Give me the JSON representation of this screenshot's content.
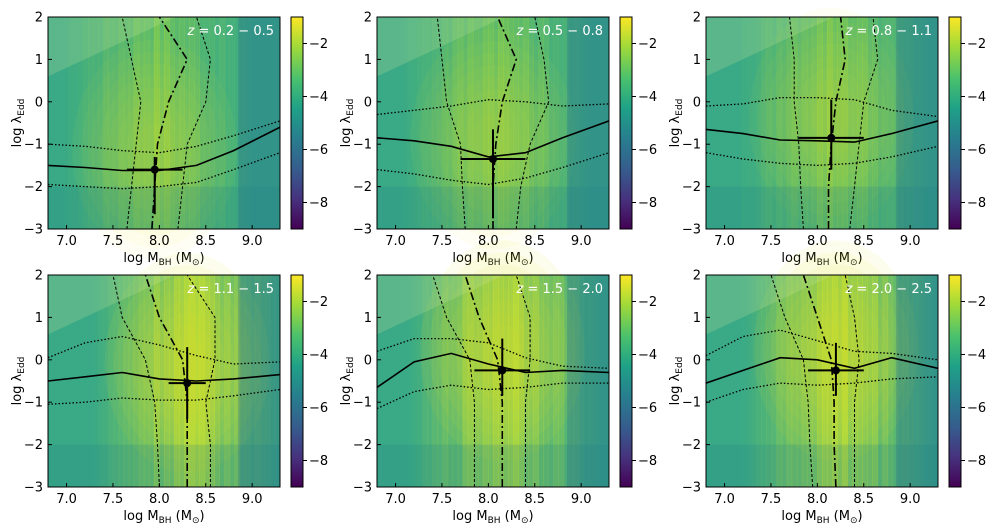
{
  "figure": {
    "xlabel": "log M_BH (M_⊙)",
    "ylabel": "log λ_Edd"
  },
  "chart_data": [
    {
      "type": "heatmap",
      "title": "z = 0.2 − 0.5",
      "xlim": [
        6.8,
        9.3
      ],
      "ylim": [
        -3,
        2
      ],
      "xticks": [
        "7.0",
        "7.5",
        "8.0",
        "8.5",
        "9.0"
      ],
      "yticks": [
        "−3",
        "−2",
        "−1",
        "0",
        "1",
        "2"
      ],
      "colorbar": {
        "range": [
          -9,
          -1
        ],
        "ticks": [
          "−2",
          "−4",
          "−6",
          "−8"
        ]
      },
      "point": {
        "x": 7.95,
        "y": -1.6,
        "xerr": 0.3,
        "yerr": [
          1.05,
          0.3
        ]
      },
      "median_lambda": {
        "x": [
          6.8,
          7.2,
          7.6,
          8.0,
          8.4,
          8.8,
          9.3
        ],
        "y": [
          -1.5,
          -1.55,
          -1.62,
          -1.62,
          -1.5,
          -1.15,
          -0.6
        ]
      },
      "lambda_upper": {
        "x": [
          6.8,
          7.2,
          7.6,
          8.0,
          8.4,
          8.8,
          9.3
        ],
        "y": [
          -1.0,
          -1.05,
          -1.15,
          -1.2,
          -1.05,
          -0.8,
          -0.45
        ]
      },
      "lambda_lower": {
        "x": [
          6.8,
          7.2,
          7.6,
          8.0,
          8.4,
          8.8,
          9.3
        ],
        "y": [
          -1.95,
          -2.0,
          -2.05,
          -2.0,
          -1.9,
          -1.6,
          -1.2
        ]
      },
      "median_mbh": {
        "y": [
          -3,
          -2,
          -1,
          0,
          1,
          2
        ],
        "x": [
          7.92,
          7.95,
          7.98,
          8.1,
          8.3,
          8.0
        ]
      },
      "mbh_lower": {
        "y": [
          -3,
          -2,
          -1,
          0,
          1,
          2
        ],
        "x": [
          7.65,
          7.7,
          7.75,
          7.8,
          7.7,
          7.6
        ]
      },
      "mbh_upper": {
        "y": [
          -3,
          -2,
          -1,
          0,
          1,
          2
        ],
        "x": [
          8.2,
          8.25,
          8.3,
          8.5,
          8.55,
          8.4
        ]
      }
    },
    {
      "type": "heatmap",
      "title": "z = 0.5 − 0.8",
      "xlim": [
        6.8,
        9.3
      ],
      "ylim": [
        -3,
        2
      ],
      "xticks": [
        "7.0",
        "7.5",
        "8.0",
        "8.5",
        "9.0"
      ],
      "yticks": [
        "−3",
        "−2",
        "−1",
        "0",
        "1",
        "2"
      ],
      "colorbar": {
        "range": [
          -9,
          -1
        ],
        "ticks": [
          "−2",
          "−4",
          "−6",
          "−8"
        ]
      },
      "point": {
        "x": 8.05,
        "y": -1.35,
        "xerr": 0.35,
        "yerr": [
          1.4,
          0.7
        ]
      },
      "median_lambda": {
        "x": [
          6.8,
          7.2,
          7.6,
          8.0,
          8.4,
          8.8,
          9.3
        ],
        "y": [
          -0.85,
          -0.92,
          -1.05,
          -1.3,
          -1.2,
          -0.85,
          -0.45
        ]
      },
      "lambda_upper": {
        "x": [
          6.8,
          7.2,
          7.6,
          8.0,
          8.4,
          8.8,
          9.3
        ],
        "y": [
          -0.3,
          -0.2,
          -0.1,
          0.05,
          0.0,
          -0.1,
          -0.05
        ]
      },
      "lambda_lower": {
        "x": [
          6.8,
          7.2,
          7.6,
          8.0,
          8.4,
          8.8,
          9.3
        ],
        "y": [
          -1.6,
          -1.7,
          -1.85,
          -1.95,
          -1.8,
          -1.55,
          -1.2
        ]
      },
      "median_mbh": {
        "y": [
          -3,
          -2,
          -1,
          0,
          1,
          2
        ],
        "x": [
          8.05,
          8.05,
          8.08,
          8.15,
          8.3,
          8.1
        ]
      },
      "mbh_lower": {
        "y": [
          -3,
          -2,
          -1,
          0,
          1,
          2
        ],
        "x": [
          7.75,
          7.72,
          7.7,
          7.55,
          7.5,
          7.45
        ]
      },
      "mbh_upper": {
        "y": [
          -3,
          -2,
          -1,
          0,
          1,
          2
        ],
        "x": [
          8.3,
          8.35,
          8.45,
          8.65,
          8.6,
          8.5
        ]
      }
    },
    {
      "type": "heatmap",
      "title": "z = 0.8 − 1.1",
      "xlim": [
        6.8,
        9.3
      ],
      "ylim": [
        -3,
        2
      ],
      "xticks": [
        "7.0",
        "7.5",
        "8.0",
        "8.5",
        "9.0"
      ],
      "yticks": [
        "−3",
        "−2",
        "−1",
        "0",
        "1",
        "2"
      ],
      "colorbar": {
        "range": [
          -9,
          -1
        ],
        "ticks": [
          "−2",
          "−4",
          "−6",
          "−8"
        ]
      },
      "point": {
        "x": 8.15,
        "y": -0.85,
        "xerr": 0.35,
        "yerr": [
          0.75,
          0.9
        ]
      },
      "median_lambda": {
        "x": [
          6.8,
          7.2,
          7.6,
          8.0,
          8.4,
          8.8,
          9.3
        ],
        "y": [
          -0.65,
          -0.75,
          -0.9,
          -0.92,
          -0.95,
          -0.75,
          -0.45
        ]
      },
      "lambda_upper": {
        "x": [
          6.8,
          7.2,
          7.6,
          8.0,
          8.4,
          8.8,
          9.3
        ],
        "y": [
          -0.1,
          -0.05,
          0.1,
          0.1,
          0.05,
          -0.2,
          -0.35
        ]
      },
      "lambda_lower": {
        "x": [
          6.8,
          7.2,
          7.6,
          8.0,
          8.4,
          8.8,
          9.3
        ],
        "y": [
          -1.2,
          -1.35,
          -1.45,
          -1.5,
          -1.45,
          -1.3,
          -1.05
        ]
      },
      "median_mbh": {
        "y": [
          -3,
          -2,
          -1,
          0,
          1,
          2
        ],
        "x": [
          8.12,
          8.12,
          8.15,
          8.2,
          8.3,
          8.25
        ]
      },
      "mbh_lower": {
        "y": [
          -3,
          -2,
          -1,
          0,
          1,
          2
        ],
        "x": [
          7.85,
          7.82,
          7.8,
          7.75,
          7.75,
          7.7
        ]
      },
      "mbh_upper": {
        "y": [
          -3,
          -2,
          -1,
          0,
          1,
          2
        ],
        "x": [
          8.35,
          8.4,
          8.45,
          8.5,
          8.65,
          8.6
        ]
      }
    },
    {
      "type": "heatmap",
      "title": "z = 1.1 − 1.5",
      "xlim": [
        6.8,
        9.3
      ],
      "ylim": [
        -3,
        2
      ],
      "xticks": [
        "7.0",
        "7.5",
        "8.0",
        "8.5",
        "9.0"
      ],
      "yticks": [
        "−3",
        "−2",
        "−1",
        "0",
        "1",
        "2"
      ],
      "colorbar": {
        "range": [
          -9,
          -1
        ],
        "ticks": [
          "−2",
          "−4",
          "−6",
          "−8"
        ]
      },
      "point": {
        "x": 8.3,
        "y": -0.55,
        "xerr": 0.2,
        "yerr": [
          0.85,
          0.85
        ]
      },
      "median_lambda": {
        "x": [
          6.8,
          7.2,
          7.6,
          8.0,
          8.4,
          8.8,
          9.3
        ],
        "y": [
          -0.5,
          -0.4,
          -0.3,
          -0.45,
          -0.5,
          -0.45,
          -0.35
        ]
      },
      "lambda_upper": {
        "x": [
          6.8,
          7.2,
          7.6,
          8.0,
          8.4,
          8.8,
          9.3
        ],
        "y": [
          0.05,
          0.4,
          0.55,
          0.35,
          0.1,
          -0.1,
          -0.05
        ]
      },
      "lambda_lower": {
        "x": [
          6.8,
          7.2,
          7.6,
          8.0,
          8.4,
          8.8,
          9.3
        ],
        "y": [
          -1.05,
          -1.0,
          -0.9,
          -0.95,
          -0.95,
          -0.85,
          -0.7
        ]
      },
      "median_mbh": {
        "y": [
          -3,
          -2,
          -1,
          0,
          1,
          2
        ],
        "x": [
          8.3,
          8.3,
          8.3,
          8.25,
          8.0,
          7.85
        ]
      },
      "mbh_lower": {
        "y": [
          -3,
          -2,
          -1,
          0,
          1,
          2
        ],
        "x": [
          8.0,
          7.98,
          7.95,
          7.85,
          7.6,
          7.5
        ]
      },
      "mbh_upper": {
        "y": [
          -3,
          -2,
          -1,
          0,
          1,
          2
        ],
        "x": [
          8.55,
          8.55,
          8.5,
          8.6,
          8.6,
          8.3
        ]
      }
    },
    {
      "type": "heatmap",
      "title": "z = 1.5 − 2.0",
      "xlim": [
        6.8,
        9.3
      ],
      "ylim": [
        -3,
        2
      ],
      "xticks": [
        "7.0",
        "7.5",
        "8.0",
        "8.5",
        "9.0"
      ],
      "yticks": [
        "−3",
        "−2",
        "−1",
        "0",
        "1",
        "2"
      ],
      "colorbar": {
        "range": [
          -9,
          -1
        ],
        "ticks": [
          "−2",
          "−4",
          "−6",
          "−8"
        ]
      },
      "point": {
        "x": 8.15,
        "y": -0.25,
        "xerr": 0.3,
        "yerr": [
          0.6,
          0.75
        ]
      },
      "median_lambda": {
        "x": [
          6.8,
          7.2,
          7.6,
          8.0,
          8.4,
          8.8,
          9.3
        ],
        "y": [
          -0.65,
          -0.05,
          0.15,
          -0.1,
          -0.3,
          -0.25,
          -0.3
        ]
      },
      "lambda_upper": {
        "x": [
          6.8,
          7.2,
          7.6,
          8.0,
          8.4,
          8.8,
          9.3
        ],
        "y": [
          0.2,
          0.5,
          0.5,
          0.4,
          0.05,
          -0.15,
          -0.2
        ]
      },
      "lambda_lower": {
        "x": [
          6.8,
          7.2,
          7.6,
          8.0,
          8.4,
          8.8,
          9.3
        ],
        "y": [
          -1.15,
          -0.75,
          -0.6,
          -0.7,
          -0.65,
          -0.55,
          -0.55
        ]
      },
      "median_mbh": {
        "y": [
          -3,
          -2,
          -1,
          0,
          1,
          2
        ],
        "x": [
          8.15,
          8.15,
          8.15,
          8.1,
          7.9,
          7.75
        ]
      },
      "mbh_lower": {
        "y": [
          -3,
          -2,
          -1,
          0,
          1,
          2
        ],
        "x": [
          7.85,
          7.85,
          7.85,
          7.8,
          7.55,
          7.4
        ]
      },
      "mbh_upper": {
        "y": [
          -3,
          -2,
          -1,
          0,
          1,
          2
        ],
        "x": [
          8.4,
          8.4,
          8.4,
          8.45,
          8.45,
          8.3
        ]
      }
    },
    {
      "type": "heatmap",
      "title": "z = 2.0 − 2.5",
      "xlim": [
        6.8,
        9.3
      ],
      "ylim": [
        -3,
        2
      ],
      "xticks": [
        "7.0",
        "7.5",
        "8.0",
        "8.5",
        "9.0"
      ],
      "yticks": [
        "−3",
        "−2",
        "−1",
        "0",
        "1",
        "2"
      ],
      "colorbar": {
        "range": [
          -9,
          -1
        ],
        "ticks": [
          "−2",
          "−4",
          "−6",
          "−8"
        ]
      },
      "point": {
        "x": 8.2,
        "y": -0.25,
        "xerr": 0.3,
        "yerr": [
          0.6,
          0.65
        ]
      },
      "median_lambda": {
        "x": [
          6.8,
          7.2,
          7.6,
          8.0,
          8.4,
          8.8,
          9.3
        ],
        "y": [
          -0.55,
          -0.25,
          0.05,
          0.0,
          -0.2,
          0.05,
          -0.2
        ]
      },
      "lambda_upper": {
        "x": [
          6.8,
          7.2,
          7.6,
          8.0,
          8.4,
          8.8,
          9.3
        ],
        "y": [
          0.1,
          0.55,
          0.7,
          0.45,
          0.2,
          0.15,
          0.0
        ]
      },
      "lambda_lower": {
        "x": [
          6.8,
          7.2,
          7.6,
          8.0,
          8.4,
          8.8,
          9.3
        ],
        "y": [
          -1.0,
          -0.7,
          -0.55,
          -0.6,
          -0.55,
          -0.45,
          -0.4
        ]
      },
      "median_mbh": {
        "y": [
          -3,
          -2,
          -1,
          0,
          1,
          2
        ],
        "x": [
          8.2,
          8.18,
          8.18,
          8.15,
          8.0,
          7.85
        ]
      },
      "mbh_lower": {
        "y": [
          -3,
          -2,
          -1,
          0,
          1,
          2
        ],
        "x": [
          7.95,
          7.92,
          7.9,
          7.85,
          7.65,
          7.5
        ]
      },
      "mbh_upper": {
        "y": [
          -3,
          -2,
          -1,
          0,
          1,
          2
        ],
        "x": [
          8.4,
          8.4,
          8.4,
          8.45,
          8.4,
          8.3
        ]
      }
    }
  ]
}
